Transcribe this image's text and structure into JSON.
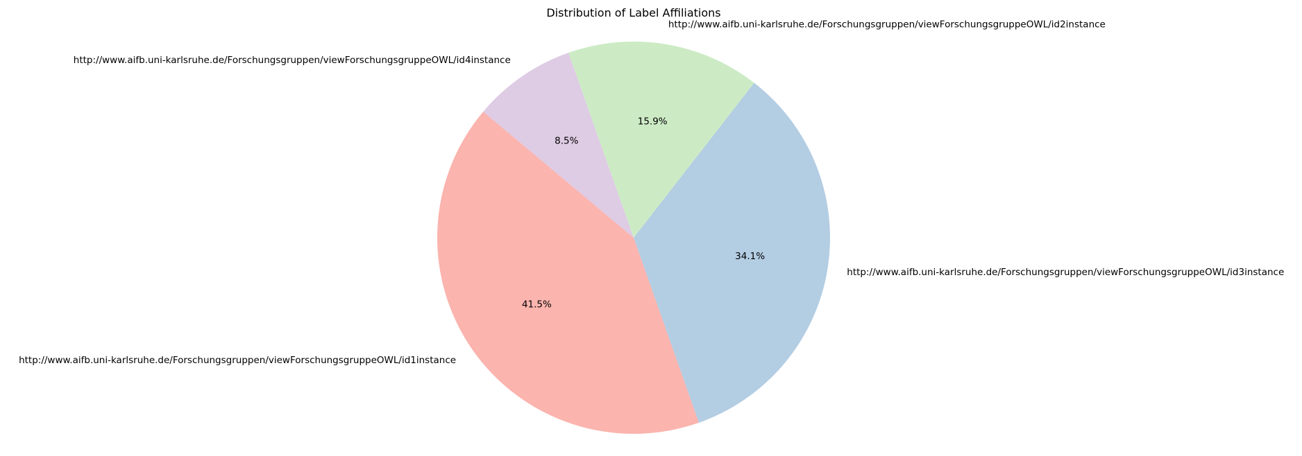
{
  "chart_data": {
    "type": "pie",
    "title": "Distribution of Label Affiliations",
    "start_angle_deg": 140,
    "direction": "counterclockwise",
    "slices": [
      {
        "label": "http://www.aifb.uni-karlsruhe.de/Forschungsgruppen/viewForschungsgruppeOWL/id1instance",
        "value": 41.5,
        "pct_label": "41.5%",
        "color": "#fbb4ae"
      },
      {
        "label": "http://www.aifb.uni-karlsruhe.de/Forschungsgruppen/viewForschungsgruppeOWL/id3instance",
        "value": 34.1,
        "pct_label": "34.1%",
        "color": "#b3cde3"
      },
      {
        "label": "http://www.aifb.uni-karlsruhe.de/Forschungsgruppen/viewForschungsgruppeOWL/id2instance",
        "value": 15.9,
        "pct_label": "15.9%",
        "color": "#ccebc5"
      },
      {
        "label": "http://www.aifb.uni-karlsruhe.de/Forschungsgruppen/viewForschungsgruppeOWL/id4instance",
        "value": 8.5,
        "pct_label": "8.5%",
        "color": "#decbe4"
      }
    ]
  }
}
